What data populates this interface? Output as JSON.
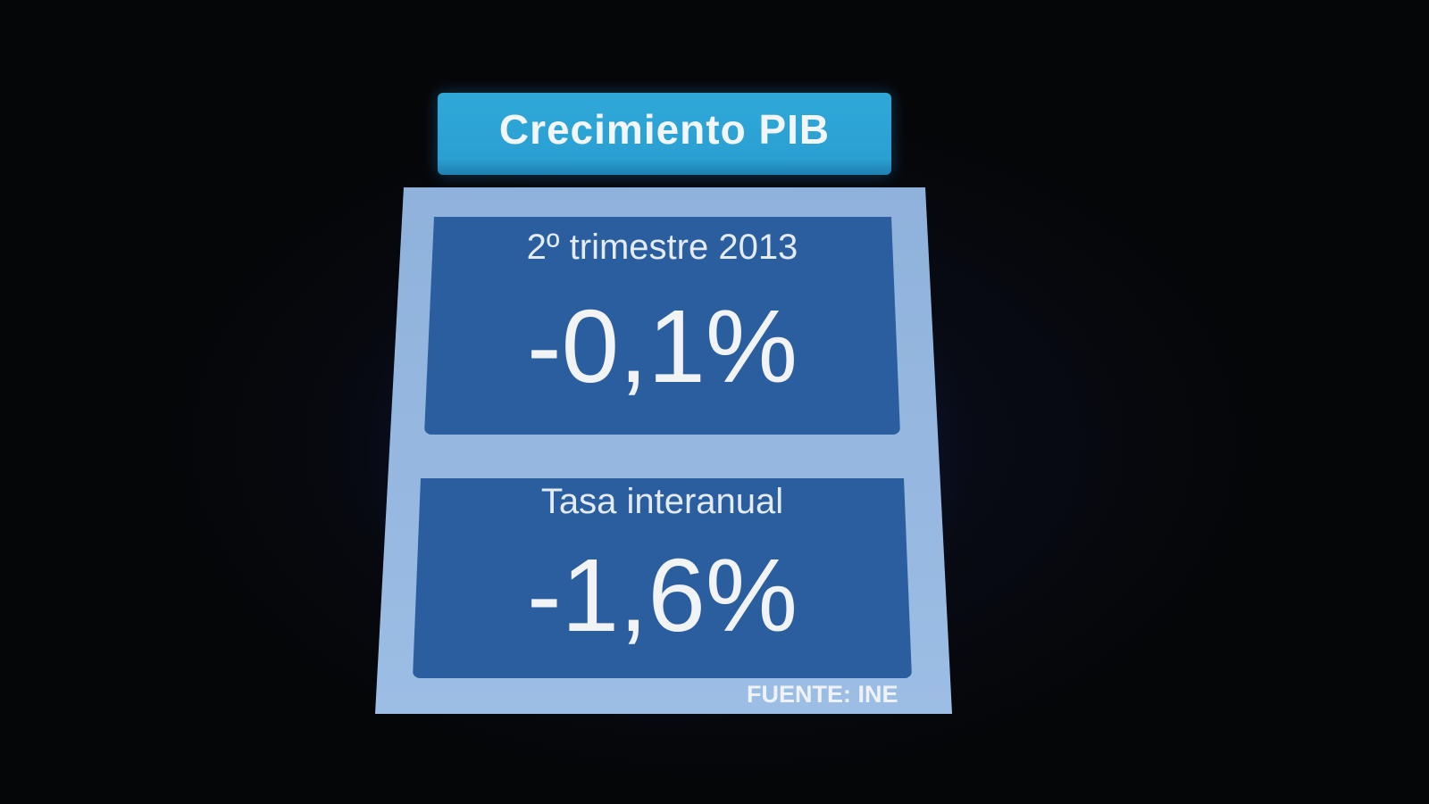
{
  "title": "Crecimiento PIB",
  "cards": [
    {
      "label": "2º trimestre 2013",
      "value": "-0,1%"
    },
    {
      "label": "Tasa interanual",
      "value": "-1,6%"
    }
  ],
  "source": "FUENTE: INE",
  "colors": {
    "title_bg": "#2fa8d8",
    "panel_bg": "#95b8e0",
    "card_bg": "#2a5e9f",
    "background": "#050608"
  }
}
